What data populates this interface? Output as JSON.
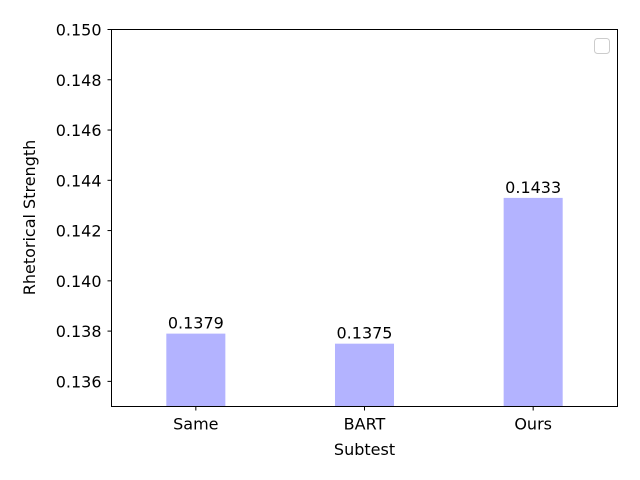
{
  "chart_data": {
    "type": "bar",
    "title": "",
    "xlabel": "Subtest",
    "ylabel": "Rhetorical Strength",
    "categories": [
      "Same",
      "BART",
      "Ours"
    ],
    "values": [
      0.1379,
      0.1375,
      0.1433
    ],
    "data_labels": [
      "0.1379",
      "0.1375",
      "0.1433"
    ],
    "ylim": [
      0.135,
      0.15
    ],
    "yticks": [
      "0.136",
      "0.138",
      "0.140",
      "0.142",
      "0.144",
      "0.146",
      "0.148",
      "0.150"
    ],
    "ytick_values": [
      0.136,
      0.138,
      0.14,
      0.142,
      0.144,
      0.146,
      0.148,
      0.15
    ],
    "bar_color": "#b3b3ff",
    "grid": false,
    "legend": {
      "placement": "top-right",
      "entries": []
    }
  }
}
